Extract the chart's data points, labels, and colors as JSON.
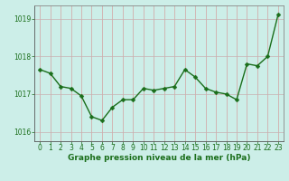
{
  "x": [
    0,
    1,
    2,
    3,
    4,
    5,
    6,
    7,
    8,
    9,
    10,
    11,
    12,
    13,
    14,
    15,
    16,
    17,
    18,
    19,
    20,
    21,
    22,
    23
  ],
  "y": [
    1017.65,
    1017.55,
    1017.2,
    1017.15,
    1016.95,
    1016.4,
    1016.3,
    1016.65,
    1016.85,
    1016.85,
    1017.15,
    1017.1,
    1017.15,
    1017.2,
    1017.65,
    1017.45,
    1017.15,
    1017.05,
    1017.0,
    1016.85,
    1017.8,
    1017.75,
    1018.0,
    1019.1
  ],
  "line_color": "#1a6e1a",
  "marker_color": "#1a6e1a",
  "bg_color": "#cceee8",
  "grid_color_v": "#d4a0a0",
  "grid_color_h": "#c8b0b0",
  "xlabel": "Graphe pression niveau de la mer (hPa)",
  "xlabel_color": "#1a6e1a",
  "tick_color": "#1a6e1a",
  "spine_color": "#888888",
  "ylim": [
    1015.75,
    1019.35
  ],
  "yticks": [
    1016,
    1017,
    1018,
    1019
  ],
  "xlim": [
    -0.5,
    23.5
  ],
  "xticks": [
    0,
    1,
    2,
    3,
    4,
    5,
    6,
    7,
    8,
    9,
    10,
    11,
    12,
    13,
    14,
    15,
    16,
    17,
    18,
    19,
    20,
    21,
    22,
    23
  ],
  "xlabel_fontsize": 6.5,
  "tick_fontsize": 5.5,
  "linewidth": 1.0,
  "markersize": 2.5
}
